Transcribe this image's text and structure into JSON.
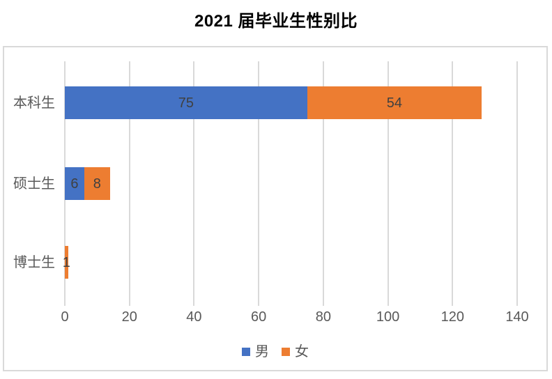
{
  "chart_data": {
    "type": "bar",
    "orientation": "horizontal",
    "stacked": true,
    "title": "2021 届毕业生性别比",
    "categories": [
      "本科生",
      "硕士生",
      "博士生"
    ],
    "series": [
      {
        "name": "男",
        "key": "male",
        "color": "#4472C4",
        "values": [
          75,
          6,
          0
        ]
      },
      {
        "name": "女",
        "key": "female",
        "color": "#ED7D31",
        "values": [
          54,
          8,
          1
        ]
      }
    ],
    "xlim": [
      0,
      140
    ],
    "xticks": [
      0,
      20,
      40,
      60,
      80,
      100,
      120,
      140
    ],
    "grid": true,
    "legend_position": "bottom",
    "data_labels": true
  },
  "style": {
    "male_color": "#4472C4",
    "female_color": "#ED7D31",
    "gridline_color": "#d9d9d9",
    "axis_text_color": "#595959",
    "data_label_color": "#404040",
    "title_color": "#000000",
    "border_color": "#d9d9d9"
  }
}
